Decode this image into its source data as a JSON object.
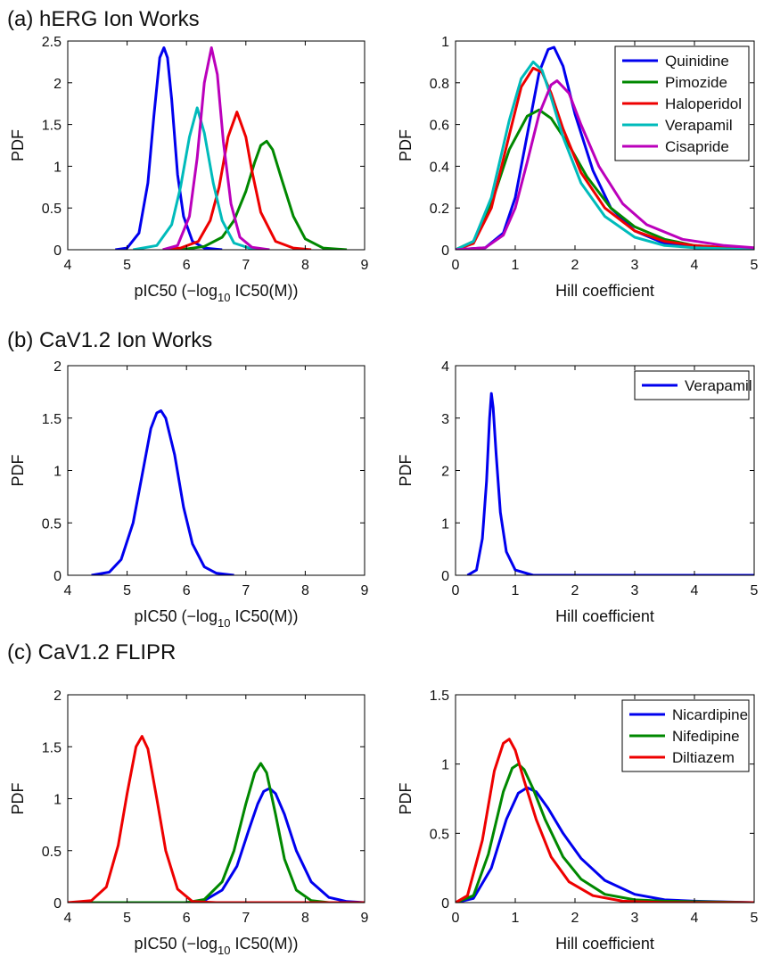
{
  "panel_titles": {
    "a": "(a) hERG Ion Works",
    "b": "(b) CaV1.2 Ion Works",
    "c": "(c) CaV1.2 FLIPR"
  },
  "chart_data": [
    {
      "id": "a-pic50",
      "type": "line",
      "xlabel": "pIC50 (−log10 IC50(M))",
      "ylabel": "PDF",
      "xlim": [
        4,
        9
      ],
      "ylim": [
        0,
        2.5
      ],
      "xticks": [
        "4",
        "5",
        "6",
        "7",
        "8",
        "9"
      ],
      "yticks": [
        "0",
        "0.5",
        "1",
        "1.5",
        "2",
        "2.5"
      ],
      "grid": false,
      "series": [
        {
          "color": "#0000ee",
          "x": [
            4.8,
            5.0,
            5.2,
            5.35,
            5.45,
            5.55,
            5.62,
            5.68,
            5.75,
            5.85,
            5.95,
            6.1,
            6.3,
            6.6
          ],
          "y": [
            0,
            0.02,
            0.2,
            0.8,
            1.6,
            2.3,
            2.42,
            2.3,
            1.8,
            0.9,
            0.4,
            0.1,
            0.02,
            0
          ]
        },
        {
          "color": "#008800",
          "x": [
            5.6,
            6.0,
            6.3,
            6.6,
            6.8,
            7.0,
            7.15,
            7.25,
            7.35,
            7.45,
            7.6,
            7.8,
            8.0,
            8.3,
            8.7
          ],
          "y": [
            0,
            0.01,
            0.04,
            0.15,
            0.35,
            0.7,
            1.05,
            1.25,
            1.3,
            1.2,
            0.85,
            0.4,
            0.13,
            0.02,
            0
          ]
        },
        {
          "color": "#ee0000",
          "x": [
            5.6,
            5.9,
            6.2,
            6.4,
            6.55,
            6.7,
            6.85,
            7.0,
            7.1,
            7.25,
            7.5,
            7.8,
            8.1
          ],
          "y": [
            0,
            0.02,
            0.1,
            0.35,
            0.75,
            1.35,
            1.65,
            1.35,
            0.95,
            0.45,
            0.1,
            0.02,
            0
          ]
        },
        {
          "color": "#00bbbb",
          "x": [
            5.1,
            5.5,
            5.75,
            5.9,
            6.05,
            6.18,
            6.3,
            6.45,
            6.6,
            6.8,
            7.1,
            7.4
          ],
          "y": [
            0,
            0.05,
            0.3,
            0.75,
            1.35,
            1.7,
            1.4,
            0.8,
            0.35,
            0.08,
            0.01,
            0
          ]
        },
        {
          "color": "#bb00bb",
          "x": [
            5.6,
            5.85,
            6.05,
            6.18,
            6.3,
            6.42,
            6.52,
            6.62,
            6.75,
            6.9,
            7.1,
            7.4
          ],
          "y": [
            0,
            0.05,
            0.4,
            1.1,
            2.0,
            2.42,
            2.1,
            1.3,
            0.55,
            0.15,
            0.03,
            0
          ]
        }
      ]
    },
    {
      "id": "a-hill",
      "type": "line",
      "xlabel": "Hill coefficient",
      "ylabel": "PDF",
      "xlim": [
        0,
        5
      ],
      "ylim": [
        0,
        1
      ],
      "xticks": [
        "0",
        "1",
        "2",
        "3",
        "4",
        "5"
      ],
      "yticks": [
        "0",
        "0.2",
        "0.4",
        "0.6",
        "0.8",
        "1"
      ],
      "grid": false,
      "legend_position": "top-right",
      "series": [
        {
          "name": "Quinidine",
          "color": "#0000ee",
          "x": [
            0,
            0.5,
            0.8,
            1.0,
            1.2,
            1.4,
            1.55,
            1.65,
            1.8,
            2.0,
            2.3,
            2.6,
            3.0,
            3.5,
            4.0,
            5.0
          ],
          "y": [
            0,
            0.01,
            0.08,
            0.25,
            0.55,
            0.85,
            0.96,
            0.97,
            0.88,
            0.65,
            0.38,
            0.2,
            0.09,
            0.03,
            0.01,
            0
          ]
        },
        {
          "name": "Pimozide",
          "color": "#008800",
          "x": [
            0,
            0.3,
            0.6,
            0.9,
            1.2,
            1.4,
            1.6,
            1.9,
            2.2,
            2.6,
            3.0,
            3.5,
            4.0,
            5.0
          ],
          "y": [
            0,
            0.04,
            0.22,
            0.48,
            0.64,
            0.67,
            0.63,
            0.5,
            0.35,
            0.2,
            0.11,
            0.05,
            0.02,
            0
          ]
        },
        {
          "name": "Haloperidol",
          "color": "#ee0000",
          "x": [
            0,
            0.3,
            0.6,
            0.9,
            1.1,
            1.3,
            1.45,
            1.6,
            1.8,
            2.1,
            2.5,
            3.0,
            3.5,
            4.0,
            5.0
          ],
          "y": [
            0,
            0.03,
            0.2,
            0.55,
            0.78,
            0.87,
            0.85,
            0.75,
            0.58,
            0.37,
            0.2,
            0.09,
            0.04,
            0.02,
            0
          ]
        },
        {
          "name": "Verapamil",
          "color": "#00bbbb",
          "x": [
            0,
            0.3,
            0.6,
            0.9,
            1.1,
            1.3,
            1.45,
            1.6,
            1.8,
            2.1,
            2.5,
            3.0,
            3.5,
            4.0,
            5.0
          ],
          "y": [
            0,
            0.04,
            0.25,
            0.62,
            0.82,
            0.9,
            0.86,
            0.73,
            0.54,
            0.32,
            0.16,
            0.06,
            0.02,
            0.01,
            0
          ]
        },
        {
          "name": "Cisapride",
          "color": "#bb00bb",
          "x": [
            0,
            0.5,
            0.8,
            1.0,
            1.2,
            1.4,
            1.6,
            1.7,
            1.9,
            2.1,
            2.4,
            2.8,
            3.2,
            3.8,
            4.5,
            5.0
          ],
          "y": [
            0,
            0.01,
            0.07,
            0.2,
            0.42,
            0.65,
            0.79,
            0.81,
            0.75,
            0.6,
            0.4,
            0.22,
            0.12,
            0.05,
            0.02,
            0.01
          ]
        }
      ]
    },
    {
      "id": "b-pic50",
      "type": "line",
      "xlabel": "pIC50 (−log10 IC50(M))",
      "ylabel": "PDF",
      "xlim": [
        4,
        9
      ],
      "ylim": [
        0,
        2
      ],
      "xticks": [
        "4",
        "5",
        "6",
        "7",
        "8",
        "9"
      ],
      "yticks": [
        "0",
        "0.5",
        "1",
        "1.5",
        "2"
      ],
      "grid": false,
      "series": [
        {
          "color": "#0000ee",
          "x": [
            4.4,
            4.7,
            4.9,
            5.1,
            5.25,
            5.4,
            5.5,
            5.57,
            5.65,
            5.8,
            5.95,
            6.1,
            6.3,
            6.5,
            6.8
          ],
          "y": [
            0,
            0.03,
            0.15,
            0.5,
            0.95,
            1.4,
            1.55,
            1.57,
            1.5,
            1.15,
            0.65,
            0.3,
            0.08,
            0.02,
            0
          ]
        }
      ]
    },
    {
      "id": "b-hill",
      "type": "line",
      "xlabel": "Hill coefficient",
      "ylabel": "PDF",
      "xlim": [
        0,
        5
      ],
      "ylim": [
        0,
        4
      ],
      "xticks": [
        "0",
        "1",
        "2",
        "3",
        "4",
        "5"
      ],
      "yticks": [
        "0",
        "1",
        "2",
        "3",
        "4"
      ],
      "grid": false,
      "legend_position": "top-right",
      "series": [
        {
          "name": "Verapamil",
          "color": "#0000ee",
          "x": [
            0.2,
            0.35,
            0.45,
            0.52,
            0.57,
            0.6,
            0.63,
            0.68,
            0.75,
            0.85,
            1.0,
            1.3,
            5.0
          ],
          "y": [
            0,
            0.1,
            0.7,
            1.8,
            3.0,
            3.47,
            3.2,
            2.3,
            1.2,
            0.45,
            0.1,
            0,
            0
          ]
        }
      ]
    },
    {
      "id": "c-pic50",
      "type": "line",
      "xlabel": "pIC50 (−log10 IC50(M))",
      "ylabel": "PDF",
      "xlim": [
        4,
        9
      ],
      "ylim": [
        0,
        2
      ],
      "xticks": [
        "4",
        "5",
        "6",
        "7",
        "8",
        "9"
      ],
      "yticks": [
        "0",
        "0.5",
        "1",
        "1.5",
        "2"
      ],
      "grid": false,
      "series": [
        {
          "color": "#0000ee",
          "x": [
            4.0,
            6.0,
            6.3,
            6.6,
            6.85,
            7.05,
            7.2,
            7.3,
            7.4,
            7.5,
            7.65,
            7.85,
            8.1,
            8.4,
            8.7,
            9.0
          ],
          "y": [
            0,
            0,
            0.02,
            0.12,
            0.35,
            0.7,
            0.95,
            1.07,
            1.1,
            1.05,
            0.85,
            0.5,
            0.2,
            0.05,
            0.01,
            0
          ]
        },
        {
          "color": "#008800",
          "x": [
            4.0,
            6.0,
            6.3,
            6.6,
            6.8,
            7.0,
            7.15,
            7.25,
            7.35,
            7.5,
            7.65,
            7.85,
            8.1,
            8.4
          ],
          "y": [
            0,
            0,
            0.03,
            0.2,
            0.5,
            0.95,
            1.25,
            1.34,
            1.25,
            0.85,
            0.42,
            0.12,
            0.02,
            0
          ]
        },
        {
          "color": "#ee0000",
          "x": [
            4.0,
            4.4,
            4.65,
            4.85,
            5.0,
            5.15,
            5.25,
            5.35,
            5.5,
            5.65,
            5.85,
            6.1,
            6.5,
            9.0
          ],
          "y": [
            0,
            0.02,
            0.15,
            0.55,
            1.05,
            1.5,
            1.6,
            1.48,
            1.0,
            0.5,
            0.13,
            0.01,
            0,
            0
          ]
        }
      ]
    },
    {
      "id": "c-hill",
      "type": "line",
      "xlabel": "Hill coefficient",
      "ylabel": "PDF",
      "xlim": [
        0,
        5
      ],
      "ylim": [
        0,
        1.5
      ],
      "xticks": [
        "0",
        "1",
        "2",
        "3",
        "4",
        "5"
      ],
      "yticks": [
        "0",
        "0.5",
        "1",
        "1.5"
      ],
      "grid": false,
      "legend_position": "top-right",
      "series": [
        {
          "name": "Nicardipine",
          "color": "#0000ee",
          "x": [
            0,
            0.3,
            0.6,
            0.85,
            1.05,
            1.2,
            1.35,
            1.55,
            1.8,
            2.1,
            2.5,
            3.0,
            3.5,
            4.0,
            5.0
          ],
          "y": [
            0,
            0.03,
            0.25,
            0.6,
            0.79,
            0.83,
            0.8,
            0.68,
            0.5,
            0.32,
            0.16,
            0.06,
            0.02,
            0.01,
            0
          ]
        },
        {
          "name": "Nifedipine",
          "color": "#008800",
          "x": [
            0,
            0.3,
            0.55,
            0.8,
            0.95,
            1.05,
            1.15,
            1.3,
            1.5,
            1.8,
            2.1,
            2.5,
            3.0,
            3.5,
            5.0
          ],
          "y": [
            0,
            0.05,
            0.35,
            0.8,
            0.97,
            1.0,
            0.96,
            0.82,
            0.6,
            0.33,
            0.17,
            0.06,
            0.02,
            0.01,
            0
          ]
        },
        {
          "name": "Diltiazem",
          "color": "#ee0000",
          "x": [
            0,
            0.2,
            0.45,
            0.65,
            0.8,
            0.9,
            1.0,
            1.15,
            1.35,
            1.6,
            1.9,
            2.3,
            2.8,
            3.5,
            5.0
          ],
          "y": [
            0,
            0.05,
            0.45,
            0.95,
            1.15,
            1.18,
            1.1,
            0.88,
            0.6,
            0.33,
            0.15,
            0.05,
            0.01,
            0,
            0
          ]
        }
      ]
    }
  ]
}
